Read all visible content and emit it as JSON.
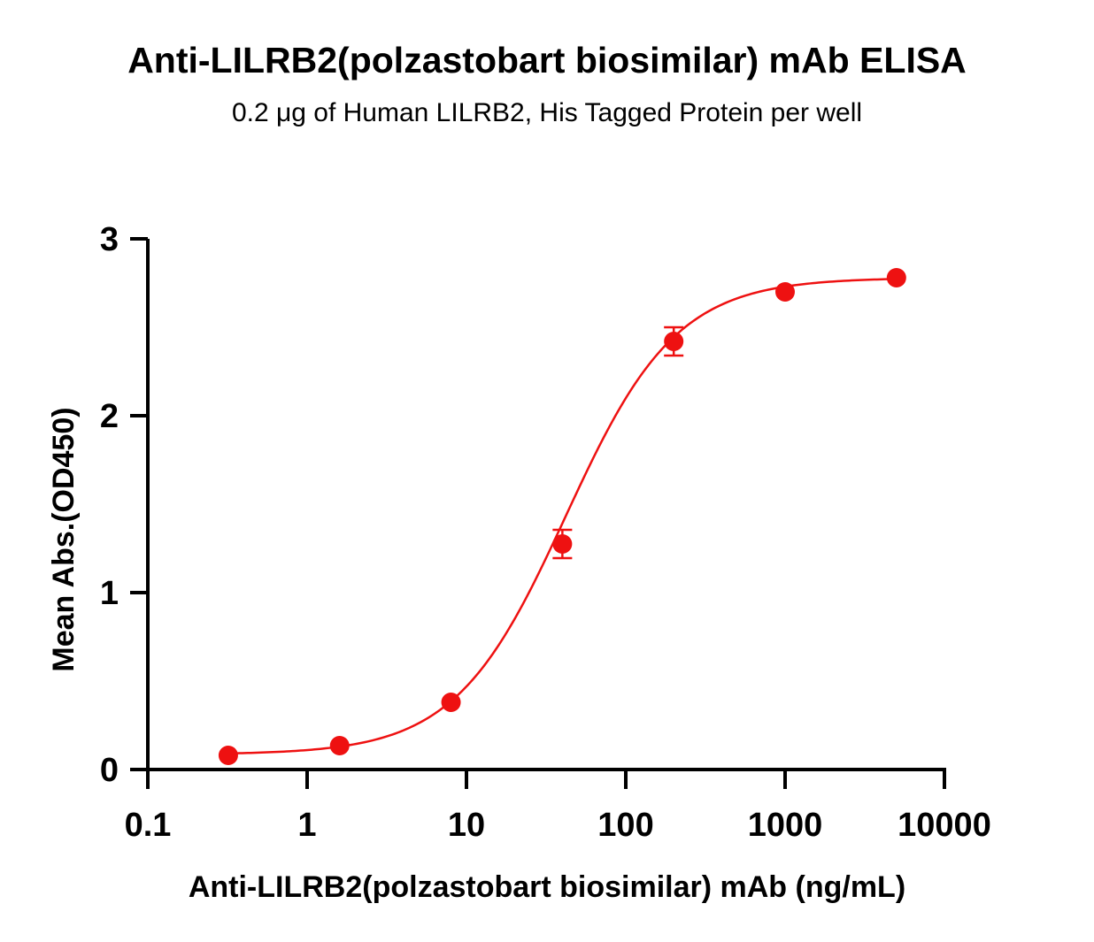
{
  "chart_data": {
    "type": "scatter",
    "title": "Anti-LILRB2(polzastobart biosimilar) mAb ELISA",
    "subtitle": "0.2 μg of Human LILRB2, His Tagged Protein per well",
    "xlabel": "Anti-LILRB2(polzastobart biosimilar) mAb (ng/mL)",
    "ylabel": "Mean Abs.(OD450)",
    "x_scale": "log",
    "xlim": [
      0.1,
      10000
    ],
    "ylim": [
      0,
      3
    ],
    "x_ticks": [
      "0.1",
      "1",
      "10",
      "100",
      "1000",
      "10000"
    ],
    "y_ticks": [
      "0",
      "1",
      "2",
      "3"
    ],
    "grid": false,
    "color": "#ee1111",
    "series": [
      {
        "x": [
          0.32,
          1.6,
          8,
          40,
          200,
          1000,
          5000
        ],
        "y": [
          0.08,
          0.135,
          0.38,
          1.275,
          2.42,
          2.7,
          2.78
        ],
        "error": [
          0.01,
          0.01,
          0.01,
          0.08,
          0.08,
          0.01,
          0.01
        ]
      }
    ],
    "fit_curve": {
      "model": "4PL",
      "bottom": 0.085,
      "top": 2.78,
      "ec50": 42,
      "hill": 1.25
    }
  }
}
